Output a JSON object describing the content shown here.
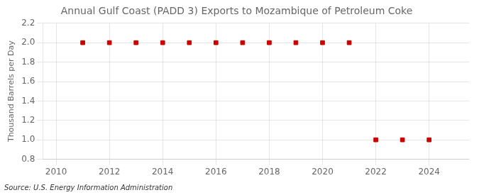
{
  "chart_data": {
    "type": "scatter",
    "title": "Annual Gulf Coast (PADD 3) Exports to Mozambique of Petroleum Coke",
    "ylabel": "Thousand Barrels per Day",
    "source": "Source: U.S. Energy Information Administration",
    "x": [
      2011,
      2012,
      2013,
      2014,
      2015,
      2016,
      2017,
      2018,
      2019,
      2020,
      2021,
      2022,
      2023,
      2024
    ],
    "values": [
      2.0,
      2.0,
      2.0,
      2.0,
      2.0,
      2.0,
      2.0,
      2.0,
      2.0,
      2.0,
      2.0,
      1.0,
      1.0,
      1.0
    ],
    "color": "#cc0000",
    "marker": "square",
    "xlim": [
      2009.5,
      2025.5
    ],
    "xticks": [
      2010,
      2012,
      2014,
      2016,
      2018,
      2020,
      2022,
      2024
    ],
    "ylim": [
      0.8,
      2.2
    ],
    "yticks": [
      0.8,
      {
        "value": 1.0,
        "label": "1.0"
      },
      1.2,
      1.4,
      1.6,
      1.8,
      {
        "value": 2.0,
        "label": "2.0"
      },
      2.2
    ],
    "grid": true
  }
}
